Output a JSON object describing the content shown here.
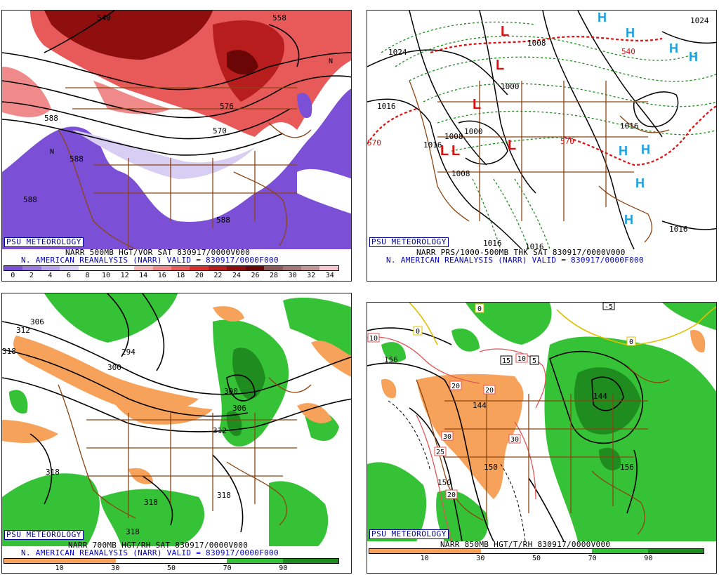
{
  "panels": [
    {
      "id": "p1",
      "badge": "PSU METEOROLOGY",
      "caption1": "NARR 500MB HGT/VOR SAT 830917/0000V000",
      "caption2": "N. AMERICAN REANALYSIS (NARR) VALID = 830917/0000F000",
      "colorbar": {
        "colors": [
          "#7b4fd6",
          "#9a78e0",
          "#b8a4ea",
          "#d8cdf3",
          "#ffffff",
          "#ffffff",
          "#ffffff",
          "#f5b8b8",
          "#f08a8a",
          "#e85a5a",
          "#d93030",
          "#b81d1d",
          "#8f0f0f",
          "#6b0606",
          "#8a5a5a",
          "#a57878",
          "#c09595",
          "#f7c6cf"
        ],
        "ticks": [
          "0",
          "2",
          "4",
          "6",
          "8",
          "10",
          "12",
          "14",
          "16",
          "18",
          "20",
          "22",
          "24",
          "26",
          "28",
          "30",
          "32",
          "34"
        ]
      },
      "labels": [
        "588",
        "588",
        "588",
        "588",
        "570",
        "540",
        "558",
        "576",
        "N",
        "N"
      ]
    },
    {
      "id": "p2",
      "badge": "PSU METEOROLOGY",
      "caption1": "NARR PRS/1000-500MB THK SAT 830917/0000V000",
      "caption2": "N. AMERICAN REANALYSIS (NARR) VALID = 830917/0000F000",
      "labels": [
        "1024",
        "1016",
        "1008",
        "1000",
        "1008",
        "1016",
        "1016",
        "1016",
        "1016",
        "570",
        "570",
        "540",
        "1024",
        "1016",
        "1008",
        "1000"
      ],
      "lows": [
        "L",
        "L",
        "L",
        "L",
        "L",
        "L"
      ],
      "highs": [
        "H",
        "H",
        "H",
        "H",
        "H",
        "H",
        "H",
        "H"
      ]
    },
    {
      "id": "p3",
      "badge": "PSU METEOROLOGY",
      "caption1": "NARR 700MB HGT/RH SAT 830917/0000V000",
      "caption2": "N. AMERICAN REANALYSIS (NARR) VALID = 830917/0000F000",
      "colorbar": {
        "colors": [
          "#f7a25a",
          "#f7a25a",
          "#ffffff",
          "#ffffff",
          "#36c236",
          "#1e8c1e"
        ],
        "ticks": [
          "10",
          "30",
          "50",
          "70",
          "90"
        ]
      },
      "labels": [
        "312",
        "306",
        "294",
        "300",
        "300",
        "306",
        "312",
        "318",
        "318",
        "318",
        "318",
        "318"
      ]
    },
    {
      "id": "p4",
      "badge": "PSU METEOROLOGY",
      "caption1": "NARR 850MB HGT/T/RH 830917/0000V000",
      "colorbar": {
        "colors": [
          "#f7a25a",
          "#f7a25a",
          "#ffffff",
          "#ffffff",
          "#36c236",
          "#1e8c1e"
        ],
        "ticks": [
          "10",
          "30",
          "50",
          "70",
          "90"
        ]
      },
      "labels": [
        "156",
        "150",
        "144",
        "144",
        "156",
        "150"
      ],
      "temps": [
        "10",
        "0",
        "0",
        "10",
        "15",
        "5",
        "20",
        "20",
        "30",
        "30",
        "25",
        "20",
        "-5",
        "0"
      ]
    }
  ]
}
